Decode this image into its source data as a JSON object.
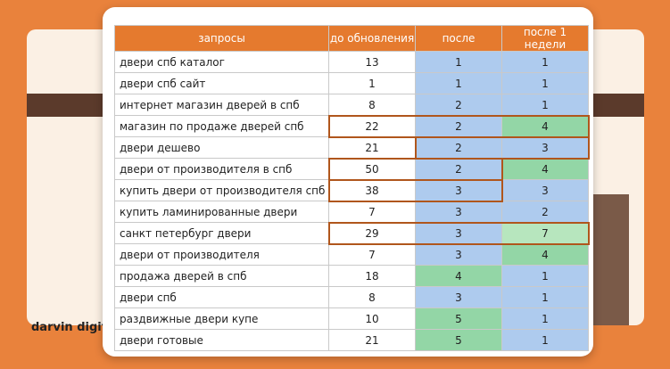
{
  "brand": "darvin digital",
  "table": {
    "header": [
      "запросы",
      "до обновления",
      "после",
      "после 1 недели"
    ],
    "rows": [
      [
        "двери спб каталог",
        13,
        1,
        1
      ],
      [
        "двери спб сайт",
        1,
        1,
        1
      ],
      [
        "интернет магазин дверей в спб",
        8,
        2,
        1
      ],
      [
        "магазин по продаже дверей спб",
        22,
        2,
        4
      ],
      [
        "двери дешево",
        21,
        2,
        3
      ],
      [
        "двери от производителя в спб",
        50,
        2,
        4
      ],
      [
        "купить двери от производителя спб",
        38,
        3,
        3
      ],
      [
        "купить ламинированные двери",
        7,
        3,
        2
      ],
      [
        "санкт петербург двери",
        29,
        3,
        7
      ],
      [
        "двери от производителя",
        7,
        3,
        4
      ],
      [
        "продажа дверей в спб",
        18,
        4,
        1
      ],
      [
        "двери спб",
        8,
        3,
        1
      ],
      [
        "раздвижные двери купе",
        10,
        5,
        1
      ],
      [
        "двери готовые",
        21,
        5,
        1
      ]
    ]
  }
}
